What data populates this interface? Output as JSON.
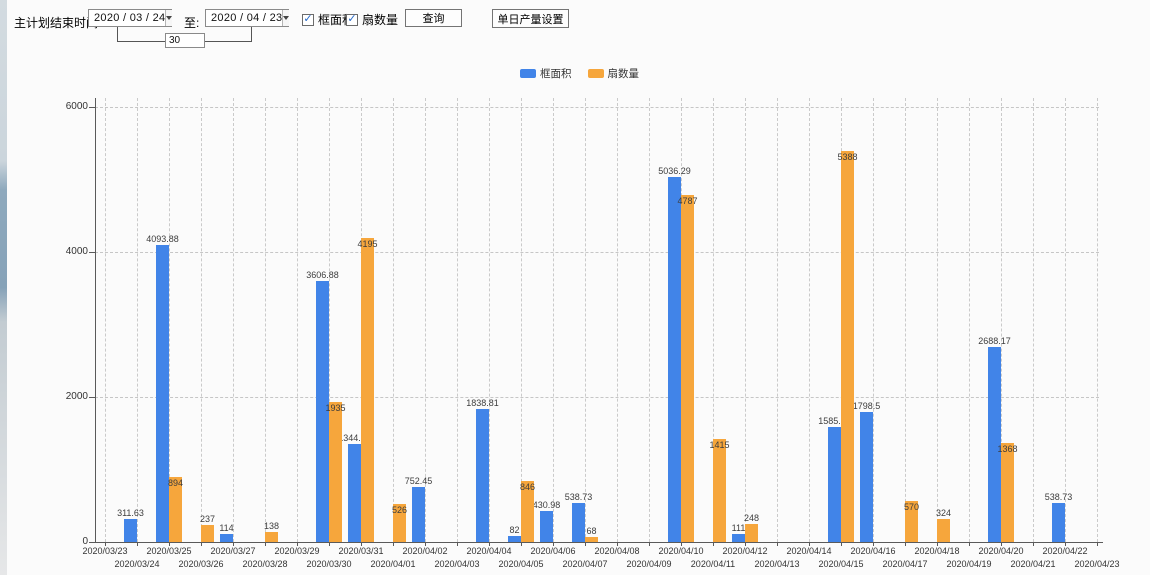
{
  "toolbar": {
    "end_time_label": "主计划结束时间:",
    "date_start": "2020 / 03 / 24",
    "to_label": "至:",
    "date_end": "2020 / 04 / 23",
    "days_value": "30",
    "checkbox_frame_area": {
      "label": "框面积",
      "checked": true,
      "mark": "✓"
    },
    "checkbox_sash_count": {
      "label": "扇数量",
      "checked": true,
      "mark": "✓"
    },
    "query_button": "查询",
    "daily_output_button": "单日产量设置"
  },
  "colors": {
    "frame_area": "#4184E8",
    "sash_count": "#F6A63C",
    "axis": "#5a5a5a",
    "grid": "#c8c8c8"
  },
  "chart_data": {
    "type": "bar",
    "title": "",
    "xlabel": "",
    "ylabel": "",
    "ylim": [
      0,
      6000
    ],
    "yticks": [
      0,
      2000,
      4000,
      6000
    ],
    "grid": true,
    "legend_position": "top",
    "x": [
      "2020/03/23",
      "2020/03/24",
      "2020/03/25",
      "2020/03/26",
      "2020/03/27",
      "2020/03/28",
      "2020/03/29",
      "2020/03/30",
      "2020/03/31",
      "2020/04/01",
      "2020/04/02",
      "2020/04/03",
      "2020/04/04",
      "2020/04/05",
      "2020/04/06",
      "2020/04/07",
      "2020/04/08",
      "2020/04/09",
      "2020/04/10",
      "2020/04/11",
      "2020/04/12",
      "2020/04/13",
      "2020/04/14",
      "2020/04/15",
      "2020/04/16",
      "2020/04/17",
      "2020/04/18",
      "2020/04/19",
      "2020/04/20",
      "2020/04/21",
      "2020/04/22",
      "2020/04/23"
    ],
    "series": [
      {
        "name": "框面积",
        "color": "#4184E8",
        "values": [
          null,
          311.63,
          4093.88,
          null,
          114,
          null,
          null,
          3606.88,
          1344.95,
          null,
          752.45,
          null,
          1838.81,
          82,
          430.98,
          538.73,
          null,
          null,
          5036.29,
          null,
          111,
          null,
          null,
          1585.96,
          1798.5,
          null,
          null,
          null,
          2688.17,
          null,
          538.73,
          null
        ]
      },
      {
        "name": "扇数量",
        "color": "#F6A63C",
        "values": [
          null,
          null,
          894,
          237,
          null,
          138,
          null,
          1935,
          4195,
          526,
          null,
          null,
          null,
          846,
          null,
          68,
          null,
          null,
          4787,
          1415,
          248,
          null,
          null,
          5388,
          null,
          570,
          324,
          null,
          1368,
          null,
          null,
          null
        ]
      }
    ]
  }
}
